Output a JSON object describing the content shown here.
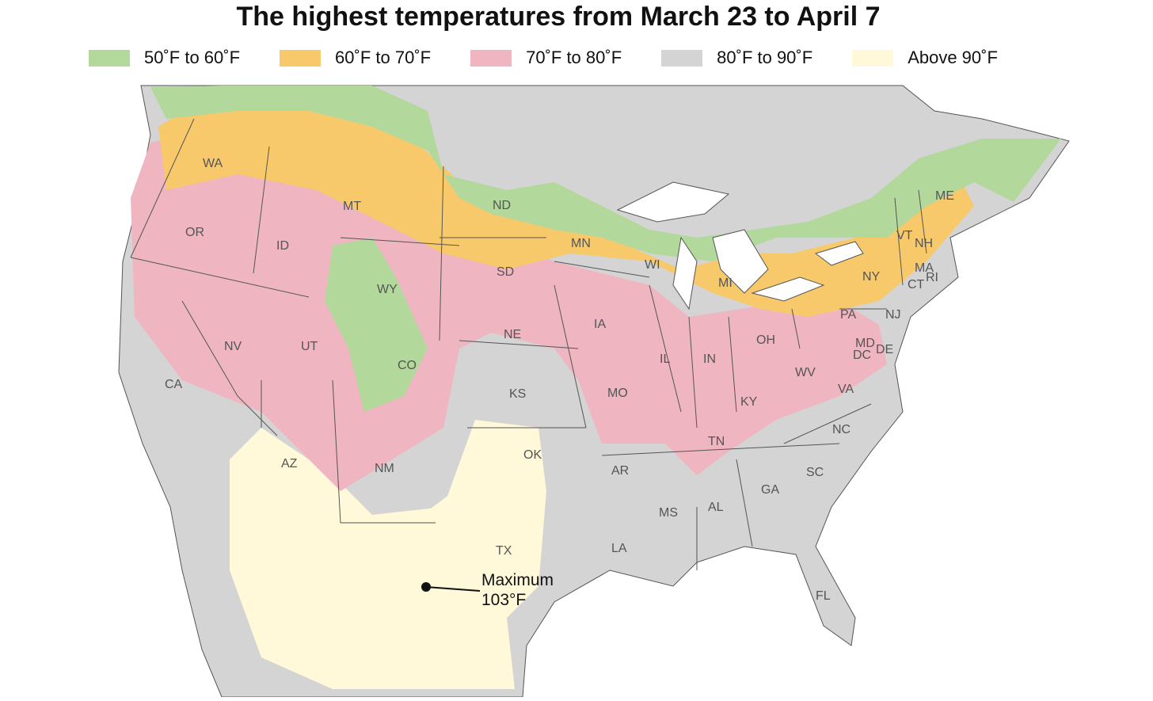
{
  "title": "The highest temperatures from March 23 to April 7",
  "legend": [
    {
      "label": "50˚F to 60˚F",
      "color": "#b3d89c"
    },
    {
      "label": "60˚F to 70˚F",
      "color": "#f7c96b"
    },
    {
      "label": "70˚F to 80˚F",
      "color": "#efb5c1"
    },
    {
      "label": "80˚F to 90˚F",
      "color": "#d4d4d4"
    },
    {
      "label": "Above 90˚F",
      "color": "#fff8d9"
    }
  ],
  "annotation": {
    "line1": "Maximum",
    "line2": "103°F"
  },
  "states": [
    "WA",
    "OR",
    "CA",
    "ID",
    "MT",
    "WY",
    "NV",
    "UT",
    "CO",
    "AZ",
    "NM",
    "ND",
    "SD",
    "NE",
    "KS",
    "OK",
    "TX",
    "MN",
    "IA",
    "MO",
    "AR",
    "LA",
    "WI",
    "IL",
    "IN",
    "MI",
    "OH",
    "KY",
    "TN",
    "MS",
    "AL",
    "GA",
    "FL",
    "SC",
    "NC",
    "VA",
    "WV",
    "PA",
    "NY",
    "VT",
    "NH",
    "ME",
    "MA",
    "CT",
    "RI",
    "NJ",
    "MD",
    "DE",
    "DC"
  ]
}
